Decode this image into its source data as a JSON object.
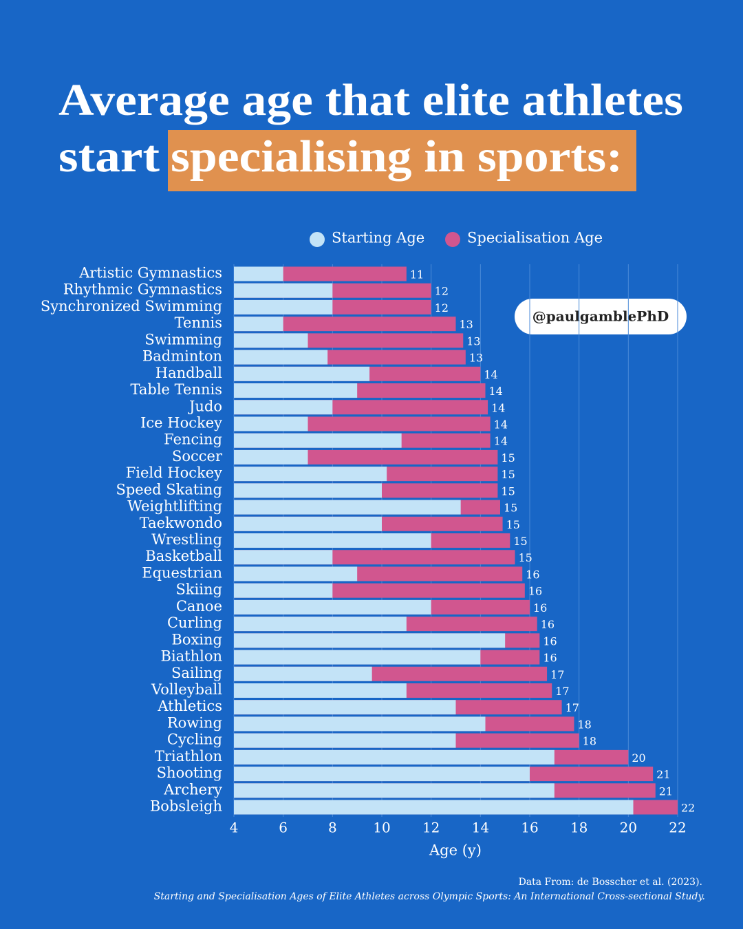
{
  "chart_data": {
    "type": "bar",
    "title_parts": [
      "Average age that elite athletes",
      "start",
      "specialising in sports:"
    ],
    "annotation": "@paulgamblePhD",
    "xlabel": "Age (y)",
    "source": [
      "Data From: de Bosscher et al. (2023).",
      "Starting and Specialisation Ages of Elite Athletes across Olympic Sports: An International Cross-sectional Study."
    ],
    "categories": [
      "Artistic Gymnastics",
      "Rhythmic Gymnastics",
      "Synchronized Swimming",
      "Tennis",
      "Swimming",
      "Badminton",
      "Handball",
      "Table Tennis",
      "Judo",
      "Ice Hockey",
      "Fencing",
      "Soccer",
      "Field Hockey",
      "Speed Skating",
      "Weightlifting",
      "Taekwondo",
      "Wrestling",
      "Basketball",
      "Equestrian",
      "Skiing",
      "Canoe",
      "Curling",
      "Boxing",
      "Biathlon",
      "Sailing",
      "Volleyball",
      "Athletics",
      "Rowing",
      "Cycling",
      "Triathlon",
      "Shooting",
      "Archery",
      "Bobsleigh"
    ],
    "series": [
      {
        "name": "Starting Age",
        "color": "#c3e3f7",
        "values": [
          6,
          8,
          8,
          6,
          7,
          7.8,
          9.5,
          9,
          8,
          7,
          10.8,
          7,
          10.2,
          10,
          13.2,
          10,
          12,
          8,
          9,
          8,
          12,
          11,
          15,
          14,
          9.6,
          11,
          13,
          14.2,
          13,
          17,
          16,
          17,
          20.2
        ]
      },
      {
        "name": "Specialisation Age",
        "color": "#d1568f",
        "values": [
          11,
          12,
          12,
          13,
          13.3,
          13.4,
          14,
          14.2,
          14.3,
          14.4,
          14.4,
          14.7,
          14.7,
          14.7,
          14.8,
          14.9,
          15.2,
          15.4,
          15.7,
          15.8,
          16,
          16.3,
          16.4,
          16.4,
          16.7,
          16.9,
          17.3,
          17.8,
          18,
          20,
          21,
          21.1,
          22
        ],
        "value_labels": [
          "11",
          "12",
          "12",
          "13",
          "13",
          "13",
          "14",
          "14",
          "14",
          "14",
          "14",
          "15",
          "15",
          "15",
          "15",
          "15",
          "15",
          "15",
          "16",
          "16",
          "16",
          "16",
          "16",
          "16",
          "17",
          "17",
          "17",
          "18",
          "18",
          "20",
          "21",
          "21",
          "22"
        ]
      }
    ],
    "xlim": [
      4,
      22
    ],
    "xticks": [
      4,
      6,
      8,
      10,
      12,
      14,
      16,
      18,
      20,
      22
    ],
    "grid": true
  }
}
